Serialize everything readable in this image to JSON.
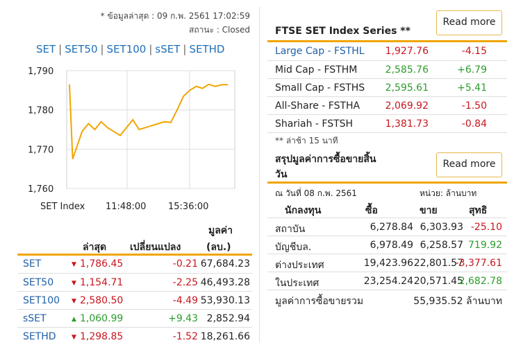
{
  "header": {
    "timestamp": "* ข้อมูลล่าสุด : 09 ก.พ. 2561 17:02:59",
    "status": "สถานะ : Closed"
  },
  "tabs": [
    "SET",
    "SET50",
    "SET100",
    "sSET",
    "SETHD"
  ],
  "chart_data": {
    "type": "line",
    "color": "#f0a500",
    "y_ticks": [
      "1,790",
      "1,780",
      "1,770",
      "1,760"
    ],
    "x_ticks": [
      "SET Index",
      "11:48:00",
      "15:36:00"
    ],
    "ylim": [
      1760,
      1790
    ],
    "x": [
      0,
      0.02,
      0.05,
      0.08,
      0.12,
      0.16,
      0.2,
      0.24,
      0.28,
      0.32,
      0.36,
      0.4,
      0.44,
      0.48,
      0.52,
      0.56,
      0.6,
      0.64,
      0.68,
      0.72,
      0.76,
      0.8,
      0.84,
      0.88,
      0.92,
      0.96,
      1.0
    ],
    "values": [
      1786.5,
      1767.5,
      1771.0,
      1774.5,
      1776.5,
      1775.0,
      1777.0,
      1775.5,
      1774.5,
      1773.5,
      1775.5,
      1777.5,
      1775.0,
      1775.5,
      1776.0,
      1776.5,
      1777.0,
      1776.8,
      1780.0,
      1783.5,
      1785.0,
      1786.0,
      1785.5,
      1786.5,
      1786.0,
      1786.4,
      1786.45
    ]
  },
  "left_table": {
    "headers": [
      "ล่าสุด",
      "เปลี่ยนแปลง",
      "มูลค่า",
      "(ลบ.)"
    ],
    "rows": [
      {
        "name": "SET",
        "dir": "down",
        "last": "1,786.45",
        "change": "-0.21",
        "value": "67,684.23"
      },
      {
        "name": "SET50",
        "dir": "down",
        "last": "1,154.71",
        "change": "-2.25",
        "value": "46,493.28"
      },
      {
        "name": "SET100",
        "dir": "down",
        "last": "2,580.50",
        "change": "-4.49",
        "value": "53,930.13"
      },
      {
        "name": "sSET",
        "dir": "up",
        "last": "1,060.99",
        "change": "+9.43",
        "value": "2,852.94"
      },
      {
        "name": "SETHD",
        "dir": "down",
        "last": "1,298.85",
        "change": "-1.52",
        "value": "18,261.66"
      }
    ]
  },
  "ftse": {
    "title": "FTSE SET Index Series **",
    "read_more": "Read more",
    "rows": [
      {
        "name": "Large Cap - FSTHL",
        "value": "1,927.76",
        "change": "-4.15",
        "dir": "down"
      },
      {
        "name": "Mid Cap - FSTHM",
        "value": "2,585.76",
        "change": "+6.79",
        "dir": "up"
      },
      {
        "name": "Small Cap - FSTHS",
        "value": "2,595.61",
        "change": "+5.41",
        "dir": "up"
      },
      {
        "name": "All-Share - FSTHA",
        "value": "2,069.92",
        "change": "-1.50",
        "dir": "down"
      },
      {
        "name": "Shariah - FSTSH",
        "value": "1,381.73",
        "change": "-0.84",
        "dir": "down"
      }
    ],
    "note": "** ล่าช้า 15 นาที"
  },
  "summary": {
    "title_line1": "สรุปมูลค่าการซื้อขายสิ้น",
    "title_line2": "วัน",
    "read_more": "Read more",
    "date": "ณ วันที่ 08 ก.พ. 2561",
    "unit": "หน่วย: ล้านบาท",
    "headers": [
      "นักลงทุน",
      "ซื้อ",
      "ขาย",
      "สุทธิ"
    ],
    "rows": [
      {
        "name": "สถาบัน",
        "buy": "6,278.84",
        "sell": "6,303.93",
        "net": "-25.10",
        "dir": "down"
      },
      {
        "name": "บัญชีบล.",
        "buy": "6,978.49",
        "sell": "6,258.57",
        "net": "719.92",
        "dir": "up"
      },
      {
        "name": "ต่างประเทศ",
        "buy": "19,423.96",
        "sell": "22,801.57",
        "net": "-3,377.61",
        "dir": "down"
      },
      {
        "name": "ในประเทศ",
        "buy": "23,254.24",
        "sell": "20,571.45",
        "net": "2,682.78",
        "dir": "up"
      }
    ],
    "total_label": "มูลค่าการซื้อขายรวม",
    "total_value": "55,935.52 ล้านบาท"
  }
}
